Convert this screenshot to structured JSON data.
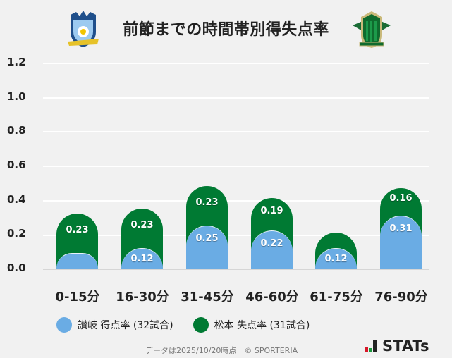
{
  "header": {
    "title": "前節までの時間帯別得失点率",
    "left_logo": "kamatamare-sanuki-crest",
    "right_logo": "matsumoto-yamaga-crest"
  },
  "colors": {
    "sanuki_blue": "#6aace4",
    "matsumoto_green": "#007a33",
    "background": "#f1f1f1",
    "grid": "#ffffff"
  },
  "chart_data": {
    "type": "bar",
    "stacked": true,
    "title": "前節までの時間帯別得失点率",
    "xlabel": "",
    "ylabel": "",
    "ylim": [
      0,
      1.2
    ],
    "yticks": [
      "0.0",
      "0.2",
      "0.4",
      "0.6",
      "0.8",
      "1.0",
      "1.2"
    ],
    "grid": true,
    "legend_position": "bottom",
    "categories": [
      "0-15分",
      "16-30分",
      "31-45分",
      "46-60分",
      "61-75分",
      "76-90分"
    ],
    "series": [
      {
        "name": "讃岐 得点率 (32試合)",
        "color": "#6aace4",
        "values": [
          0.09,
          0.12,
          0.25,
          0.22,
          0.12,
          0.31
        ],
        "labels": [
          "",
          "0.12",
          "0.25",
          "0.22",
          "0.12",
          "0.31"
        ]
      },
      {
        "name": "松本 失点率 (31試合)",
        "color": "#007a33",
        "values": [
          0.23,
          0.23,
          0.23,
          0.19,
          0.09,
          0.16
        ],
        "labels": [
          "0.23",
          "0.23",
          "0.23",
          "0.19",
          "",
          "0.16"
        ]
      }
    ]
  },
  "legend": {
    "items": [
      {
        "label": "讃岐 得点率 (32試合)",
        "color": "#6aace4"
      },
      {
        "label": "松本 失点率 (31試合)",
        "color": "#007a33"
      }
    ]
  },
  "footer": {
    "note": "データは2025/10/20時点　© SPORTERIA",
    "brand": "STATs"
  }
}
